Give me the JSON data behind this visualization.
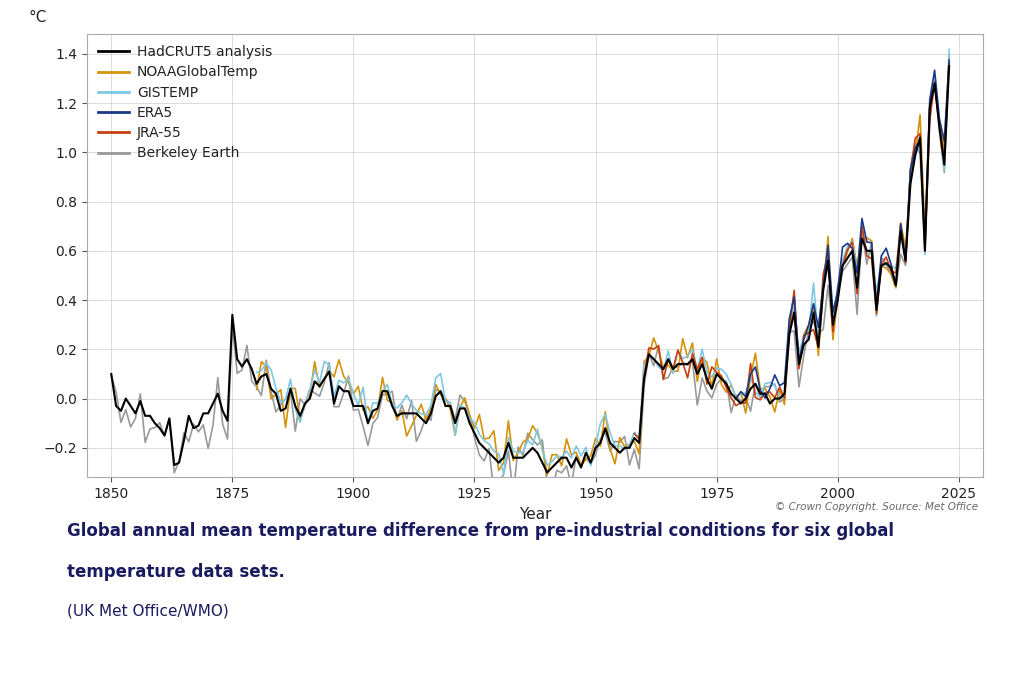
{
  "xlabel": "Year",
  "ylabel": "°C",
  "xlim": [
    1845,
    2030
  ],
  "ylim": [
    -0.32,
    1.48
  ],
  "yticks": [
    -0.2,
    0.0,
    0.2,
    0.4,
    0.6,
    0.8,
    1.0,
    1.2,
    1.4
  ],
  "xticks": [
    1850,
    1875,
    1900,
    1925,
    1950,
    1975,
    2000,
    2025
  ],
  "copyright_text": "© Crown Copyright. Source: Met Office",
  "caption_line1": "Global annual mean temperature difference from pre-industrial conditions for six global",
  "caption_line2": "temperature data sets.",
  "caption_line3": "(UK Met Office/WMO)",
  "series_colors": {
    "HadCRUT5 analysis": "#000000",
    "NOAAGlobalTemp": "#d4920a",
    "GISTEMP": "#7ec8e3",
    "ERA5": "#1a3a8a",
    "JRA-55": "#c84010",
    "Berkeley Earth": "#999999"
  },
  "series_linewidths": {
    "HadCRUT5 analysis": 1.5,
    "NOAAGlobalTemp": 1.2,
    "GISTEMP": 1.2,
    "ERA5": 1.2,
    "JRA-55": 1.2,
    "Berkeley Earth": 1.2
  },
  "background_color": "#ffffff",
  "caption_color": "#1a1a5e",
  "caption_fontsize": 12,
  "wmo_fontsize": 11
}
